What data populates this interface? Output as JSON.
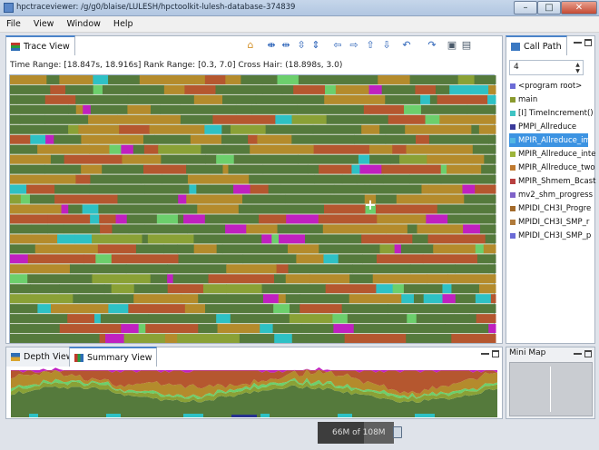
{
  "window": {
    "title": "hpctraceviewer: /g/g0/blaise/LULESH/hpctoolkit-lulesh-database-374839",
    "minimize": "–",
    "maximize": "□",
    "close": "✕"
  },
  "menu": [
    "File",
    "View",
    "Window",
    "Help"
  ],
  "trace_view": {
    "tab_label": "Trace View",
    "time_range_label": "Time Range:",
    "time_range": "[18.847s, 18.916s]",
    "rank_range_label": "Rank Range:",
    "rank_range": "[0.3, 7.0]",
    "cross_hair_label": "Cross Hair:",
    "cross_hair": "(18.898s, 3.0)",
    "toolbar_icons": [
      "home-icon",
      "expand-horizontal-icon",
      "shrink-horizontal-icon",
      "expand-vertical-icon",
      "shrink-vertical-icon",
      "arrow-left-icon",
      "arrow-right-icon",
      "arrow-up-icon",
      "arrow-down-icon",
      "undo-icon",
      "redo-icon",
      "save-icon",
      "open-folder-icon"
    ]
  },
  "call_path": {
    "tab_label": "Call Path",
    "depth_value": "4",
    "items": [
      {
        "label": "<program root>",
        "color": "#6b6bd6"
      },
      {
        "label": "main",
        "color": "#8a9a2e"
      },
      {
        "label": "[I] TimeIncrement()",
        "color": "#3fc4c4"
      },
      {
        "label": "PMPI_Allreduce",
        "color": "#3a3a9a"
      },
      {
        "label": "MPIR_Allreduce_im",
        "color": "#53b7e3"
      },
      {
        "label": "MPIR_Allreduce_inte",
        "color": "#9db53a"
      },
      {
        "label": "MPIR_Allreduce_two",
        "color": "#c07a2f"
      },
      {
        "label": "MPIR_Shmem_Bcast",
        "color": "#b84040"
      },
      {
        "label": "mv2_shm_progress",
        "color": "#7f62c9"
      },
      {
        "label": "MPIDI_CH3I_Progre",
        "color": "#a36a2a"
      },
      {
        "label": "MPIDI_CH3I_SMP_r",
        "color": "#b07a3a"
      },
      {
        "label": "MPIDI_CH3I_SMP_p",
        "color": "#6b6bd6"
      }
    ],
    "selected_index": 4
  },
  "depth_view": {
    "tab_label": "Depth View"
  },
  "summary_view": {
    "tab_label": "Summary View"
  },
  "mini_map": {
    "title": "Mini Map"
  },
  "status": {
    "memory": "66M of 108M",
    "memory_used_fraction": 0.61
  },
  "colors": {
    "green": "#557a3c",
    "brown": "#b5572f",
    "gold": "#b48b2c",
    "magenta": "#c020c0",
    "cyan": "#2ec1c5",
    "lightgreen": "#6ccf6c",
    "olive": "#8aa136",
    "navy": "#27338f",
    "tan": "#c4a866",
    "gray": "#b0a49a"
  }
}
